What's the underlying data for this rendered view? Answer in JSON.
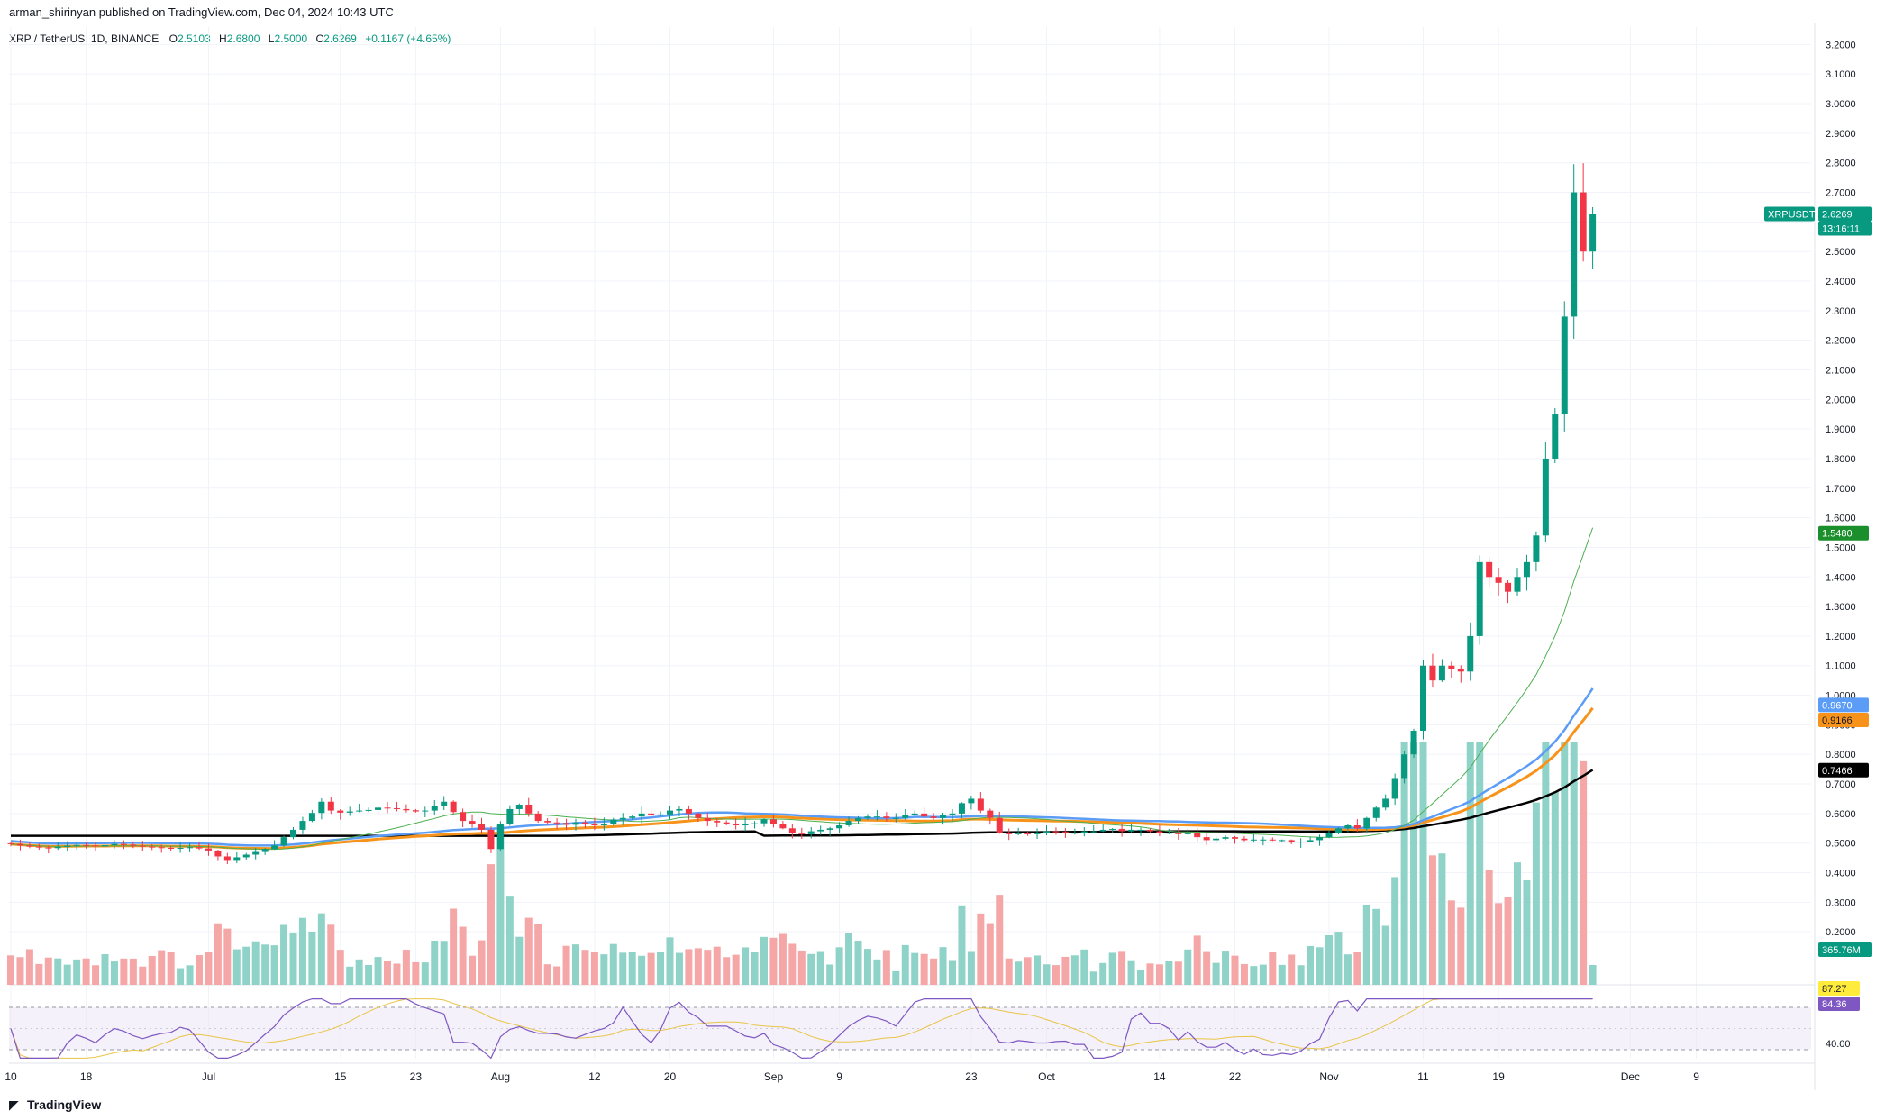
{
  "header": {
    "published_line": "arman_shirinyan published on TradingView.com, Dec 04, 2024 10:43 UTC"
  },
  "legend": {
    "symbol": "XRP / TetherUS, 1D, BINANCE",
    "open_label": "O",
    "open": "2.5103",
    "high_label": "H",
    "high": "2.6800",
    "low_label": "L",
    "low": "2.5000",
    "close_label": "C",
    "close": "2.6269",
    "change": "+0.1167 (+4.65%)"
  },
  "price_tag": {
    "symbol": "XRPUSDT",
    "price": "2.6269",
    "countdown": "13:16:11"
  },
  "branding": {
    "logo_text": "TradingView"
  },
  "colors": {
    "up": "#089981",
    "down": "#f23645",
    "vol_up": "#8fd3c8",
    "vol_down": "#f5a6a6",
    "ma_fast": "#4caf50",
    "ma_blue": "#5b9cf6",
    "ma_orange": "#f7931a",
    "ma_black": "#000000",
    "rsi": "#7e57c2",
    "rsi_ma": "#e8c547"
  },
  "chart_data": {
    "type": "candlestick",
    "title": "XRP / TetherUS, 1D, BINANCE",
    "y_axis": {
      "ticks": [
        "0.2000",
        "0.3000",
        "0.4000",
        "0.5000",
        "0.6000",
        "0.7000",
        "0.8000",
        "0.9000",
        "1.0000",
        "1.1000",
        "1.2000",
        "1.3000",
        "1.4000",
        "1.5000",
        "1.6000",
        "1.7000",
        "1.8000",
        "1.9000",
        "2.0000",
        "2.1000",
        "2.2000",
        "2.3000",
        "2.4000",
        "2.5000",
        "2.6000",
        "2.7000",
        "2.8000",
        "2.9000",
        "3.0000",
        "3.1000",
        "3.2000"
      ],
      "range": [
        0.1,
        3.25
      ]
    },
    "x_axis": {
      "labels": [
        "10",
        "18",
        "Jul",
        "15",
        "23",
        "Aug",
        "12",
        "20",
        "Sep",
        "9",
        "23",
        "Oct",
        "14",
        "22",
        "Nov",
        "11",
        "19",
        "Dec",
        "9"
      ],
      "label_days": [
        0,
        8,
        21,
        35,
        43,
        52,
        62,
        70,
        81,
        88,
        102,
        110,
        122,
        130,
        140,
        150,
        158,
        172,
        179
      ]
    },
    "date_range": [
      "2024-06-10",
      "2024-12-04"
    ],
    "closes": [
      0.497,
      0.492,
      0.488,
      0.485,
      0.483,
      0.487,
      0.491,
      0.494,
      0.492,
      0.489,
      0.493,
      0.497,
      0.495,
      0.491,
      0.488,
      0.486,
      0.484,
      0.482,
      0.484,
      0.486,
      0.482,
      0.475,
      0.455,
      0.44,
      0.452,
      0.461,
      0.47,
      0.48,
      0.492,
      0.52,
      0.545,
      0.575,
      0.602,
      0.64,
      0.61,
      0.603,
      0.607,
      0.61,
      0.612,
      0.62,
      0.618,
      0.615,
      0.611,
      0.607,
      0.61,
      0.625,
      0.64,
      0.605,
      0.575,
      0.565,
      0.545,
      0.48,
      0.565,
      0.615,
      0.63,
      0.6,
      0.575,
      0.57,
      0.568,
      0.562,
      0.57,
      0.565,
      0.56,
      0.565,
      0.58,
      0.585,
      0.59,
      0.6,
      0.595,
      0.597,
      0.61,
      0.615,
      0.6,
      0.585,
      0.575,
      0.57,
      0.565,
      0.56,
      0.565,
      0.567,
      0.58,
      0.565,
      0.55,
      0.535,
      0.53,
      0.54,
      0.545,
      0.55,
      0.56,
      0.575,
      0.585,
      0.59,
      0.59,
      0.585,
      0.585,
      0.595,
      0.6,
      0.59,
      0.585,
      0.595,
      0.6,
      0.635,
      0.65,
      0.61,
      0.585,
      0.535,
      0.53,
      0.535,
      0.53,
      0.535,
      0.54,
      0.538,
      0.535,
      0.535,
      0.54,
      0.54,
      0.545,
      0.548,
      0.54,
      0.545,
      0.545,
      0.54,
      0.535,
      0.535,
      0.53,
      0.535,
      0.52,
      0.51,
      0.515,
      0.52,
      0.515,
      0.51,
      0.512,
      0.512,
      0.51,
      0.51,
      0.502,
      0.505,
      0.51,
      0.52,
      0.535,
      0.55,
      0.56,
      0.55,
      0.585,
      0.62,
      0.65,
      0.72,
      0.8,
      0.88,
      1.1,
      1.05,
      1.1,
      1.09,
      1.08,
      1.2,
      1.45,
      1.4,
      1.38,
      1.35,
      1.4,
      1.45,
      1.54,
      1.8,
      1.95,
      2.28,
      2.7,
      2.5,
      2.6269
    ]
  },
  "indicators": {
    "ma_fast_label": "1.5480",
    "ma_blue_label": "0.9670",
    "ma_orange_label": "0.9166",
    "ma_black_label": "0.7466",
    "volume_label": "365.76M",
    "rsi_ma_label": "87.27",
    "rsi_label": "84.36",
    "rsi_level_label": "40.00"
  }
}
